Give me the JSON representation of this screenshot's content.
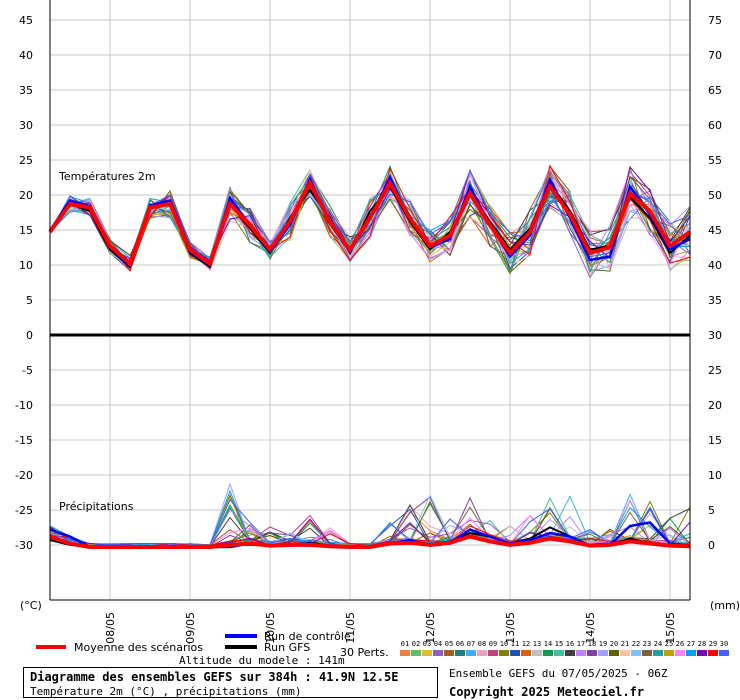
{
  "header": {
    "info_title": "Diagramme des ensembles GEFS sur 384h : 41.9N 12.5E",
    "info_subtitle": "Température 2m (°C) , précipitations (mm)",
    "run_info": "Ensemble GEFS du 07/05/2025 - 06Z",
    "copyright": "Copyright 2025 Meteociel.fr",
    "altitude": "Altitude du modele : 141m"
  },
  "legend": {
    "mean": "Moyenne des scénarios",
    "control": "Run de contrôle",
    "gfs": "Run GFS",
    "perts_label": "30 Perts.",
    "perts_numbers": [
      "01",
      "02",
      "03",
      "04",
      "05",
      "06",
      "07",
      "08",
      "09",
      "10",
      "11",
      "12",
      "13",
      "14",
      "15",
      "16",
      "17",
      "18",
      "19",
      "20",
      "21",
      "22",
      "23",
      "24",
      "25",
      "26",
      "27",
      "28",
      "29",
      "30"
    ],
    "mean_color": "#ff0000",
    "control_color": "#0000ff",
    "gfs_color": "#000000"
  },
  "chart_data": {
    "type": "line",
    "x_tick_labels": [
      "08/05",
      "09/05",
      "10/05",
      "11/05",
      "12/05",
      "13/05",
      "14/05",
      "15/05"
    ],
    "x_axis_hours": [
      0,
      384
    ],
    "x_tick_hours": [
      18,
      42,
      66,
      90,
      114,
      138,
      162,
      186
    ],
    "left_unit": "(°C)",
    "right_unit": "(mm)",
    "left_ticks": [
      45,
      40,
      35,
      30,
      25,
      20,
      15,
      10,
      5,
      0,
      -5,
      -10,
      -15,
      -20,
      -25,
      -30
    ],
    "right_ticks": [
      75,
      70,
      65,
      60,
      55,
      50,
      45,
      40,
      35,
      30,
      25,
      20,
      15,
      10,
      5,
      0
    ],
    "grid": true,
    "temperature_panel": {
      "label": "Températures 2m",
      "ylim": [
        0,
        48
      ]
    },
    "precipitation_panel": {
      "label": "Précipitations",
      "ylim_temperature_axis": [
        -35,
        0
      ]
    },
    "member_colors": [
      "#f08040",
      "#60c060",
      "#e0c020",
      "#9060c0",
      "#a06020",
      "#208080",
      "#40b0f0",
      "#f0a0c0",
      "#c04080",
      "#808000",
      "#2050c0",
      "#e06000",
      "#c0c0c0",
      "#00a050",
      "#40c0a0",
      "#404040",
      "#c080ff",
      "#8040a0",
      "#a0a0ff",
      "#606000",
      "#ffc0a0",
      "#80c0ff",
      "#806040",
      "#20a0a0",
      "#c0a000",
      "#ff80ff",
      "#00a0ff",
      "#8000c0",
      "#ff0000",
      "#4060ff"
    ],
    "temperature": {
      "hours": [
        0,
        6,
        12,
        18,
        24,
        30,
        36,
        42,
        48,
        54,
        60,
        66,
        72,
        78,
        84,
        90,
        96,
        102,
        108,
        114,
        120,
        126,
        132,
        138,
        144,
        150,
        156,
        162,
        168,
        174,
        180,
        186,
        192
      ],
      "mean": [
        15,
        19,
        18.5,
        13,
        10.5,
        18.5,
        19,
        12.5,
        10.5,
        19,
        16,
        12.5,
        16.5,
        22,
        16.5,
        12.5,
        17,
        22,
        17,
        13,
        14.5,
        20.5,
        16,
        12,
        15,
        21.5,
        17.5,
        12,
        12.8,
        20.5,
        18,
        13,
        15
      ],
      "control": [
        15.2,
        19.5,
        18.7,
        12.8,
        10.2,
        18.8,
        19.5,
        12.2,
        10.3,
        19.8,
        16,
        12.2,
        16,
        22.5,
        16.2,
        12.2,
        17,
        22.8,
        16.8,
        12.8,
        14,
        21.5,
        16,
        11.5,
        14.5,
        22.5,
        17,
        11,
        11.5,
        21.5,
        17.5,
        12.5,
        14
      ],
      "gfs": [
        15,
        19,
        18,
        12.5,
        10,
        18.5,
        19,
        12,
        10,
        19,
        15.5,
        12,
        17,
        21,
        17,
        12,
        18,
        21.5,
        16.5,
        12.5,
        15,
        20.5,
        16.5,
        12.5,
        15.5,
        22,
        18,
        12.5,
        13,
        20,
        17,
        12,
        14.5
      ],
      "member_spread": [
        0,
        1.2,
        1.4,
        1.2,
        1.2,
        1.6,
        2,
        1.2,
        1,
        2.6,
        2.5,
        1.6,
        3,
        2,
        2.3,
        1.8,
        3,
        2.6,
        2.6,
        2.3,
        3,
        3.5,
        3.2,
        3,
        3.5,
        3.5,
        3.3,
        3.5,
        3.5,
        4,
        3.5,
        3.5,
        4
      ]
    },
    "precipitation_mm": {
      "hours": [
        0,
        6,
        12,
        18,
        24,
        30,
        36,
        42,
        48,
        54,
        60,
        66,
        72,
        78,
        84,
        90,
        96,
        102,
        108,
        114,
        120,
        126,
        132,
        138,
        144,
        150,
        156,
        162,
        168,
        174,
        180,
        186,
        192
      ],
      "mean": [
        1.5,
        0.5,
        0,
        0,
        0,
        0,
        0,
        0,
        0,
        0.3,
        0.5,
        0.2,
        0.3,
        0.3,
        0.1,
        0,
        0,
        0.5,
        0.6,
        0.3,
        0.6,
        1.5,
        0.8,
        0.3,
        0.6,
        1.2,
        0.8,
        0.2,
        0.3,
        0.8,
        0.5,
        0.2,
        0.1
      ],
      "control": [
        2.5,
        1.5,
        0,
        0,
        0,
        0,
        0,
        0,
        0,
        0,
        0.5,
        0.3,
        0.2,
        0.5,
        0,
        0,
        0,
        0.5,
        1,
        0.2,
        0.5,
        2.5,
        1.5,
        0.5,
        1,
        2,
        1.5,
        0.2,
        0.3,
        3,
        3.5,
        0.5,
        0.2
      ],
      "gfs": [
        1,
        0.3,
        0,
        0,
        0,
        0,
        0,
        0,
        0,
        0.3,
        0.3,
        0.2,
        0.3,
        0.6,
        0.2,
        0,
        0,
        0.6,
        0.8,
        0.4,
        0.8,
        2,
        1.5,
        0.5,
        1.2,
        2.8,
        1.5,
        0.2,
        0.3,
        1.2,
        0.5,
        0.2,
        0.1
      ],
      "member_max": [
        3,
        1.5,
        0.5,
        0.5,
        0.5,
        0.5,
        0.5,
        0.5,
        0.3,
        9,
        4,
        3,
        2,
        4.5,
        3,
        0.5,
        0.5,
        3.5,
        6,
        7.5,
        4,
        7,
        6,
        3,
        4.5,
        7,
        7.5,
        3,
        3,
        8,
        7,
        5,
        6
      ]
    }
  }
}
